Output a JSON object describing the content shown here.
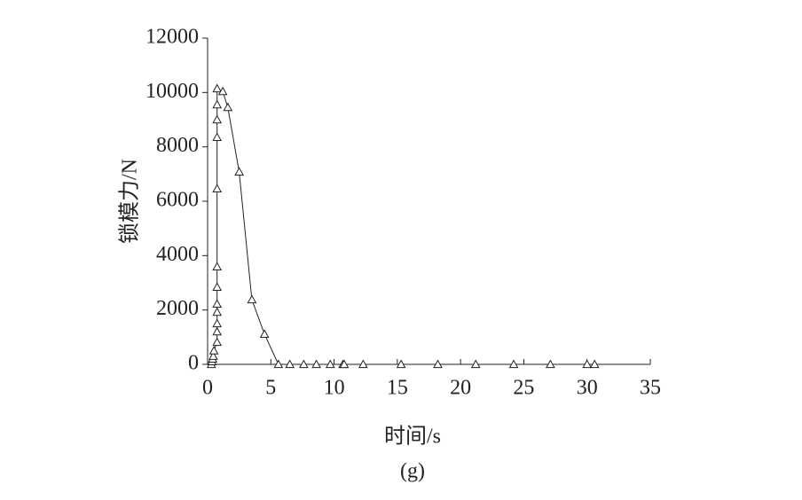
{
  "chart_data": {
    "type": "line",
    "x_label": "时间/s",
    "y_label": "锁模力/N",
    "caption": "(g)",
    "marker": "triangle",
    "color": "#222222",
    "x": [
      0.3,
      0.35,
      0.4,
      0.45,
      0.5,
      0.75,
      0.75,
      0.75,
      0.75,
      0.75,
      0.75,
      0.75,
      0.75,
      0.75,
      0.75,
      0.75,
      0.75,
      1.2,
      1.6,
      2.5,
      3.5,
      4.5,
      5.6,
      6.5,
      7.6,
      8.6,
      9.7,
      10.7,
      10.8,
      12.3,
      15.3,
      18.2,
      21.2,
      24.2,
      27.1,
      30.0,
      30.6
    ],
    "y": [
      0,
      100,
      200,
      300,
      500,
      815,
      1200,
      1500,
      1920,
      2220,
      2840,
      3590,
      6460,
      8350,
      9000,
      9550,
      10140,
      10040,
      9450,
      7080,
      2380,
      1110,
      0,
      0,
      0,
      0,
      0,
      0,
      0,
      0,
      0,
      0,
      0,
      0,
      0,
      0,
      0
    ],
    "xlim": [
      0,
      35
    ],
    "xticks": [
      0,
      5,
      10,
      15,
      20,
      25,
      30,
      35
    ],
    "ylim": [
      0,
      12000
    ],
    "yticks": [
      0,
      2000,
      4000,
      6000,
      8000,
      10000,
      12000
    ],
    "grid": false
  }
}
